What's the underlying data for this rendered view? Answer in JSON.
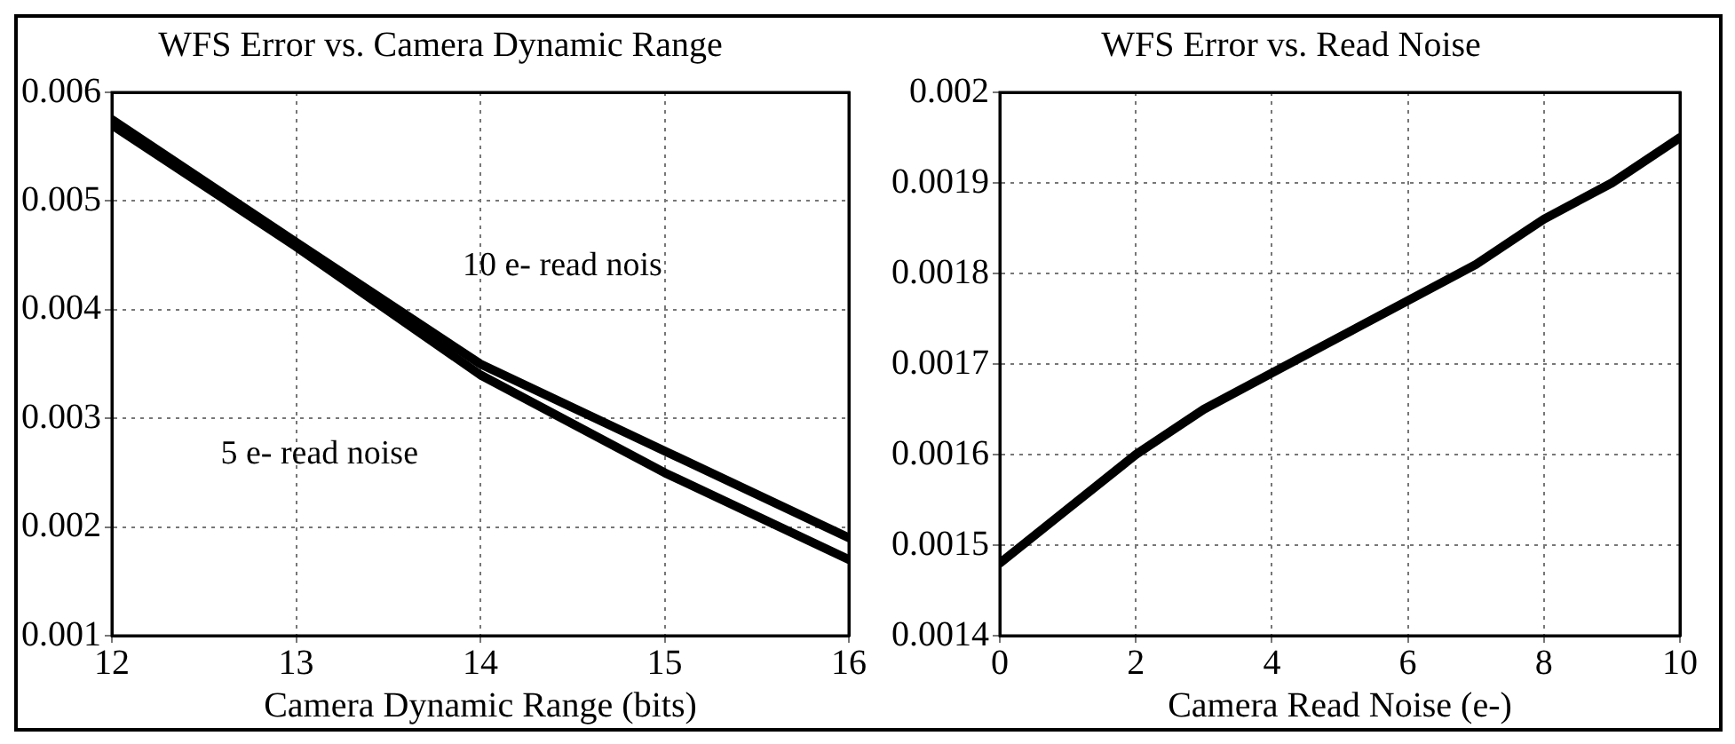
{
  "chart_data": [
    {
      "type": "line",
      "title": "WFS Error vs. Camera Dynamic Range",
      "xlabel": "Camera Dynamic Range (bits)",
      "x": [
        12,
        13,
        14,
        15,
        16
      ],
      "series": [
        {
          "name": "10 e- read nois",
          "color": "#000000",
          "values": [
            0.00575,
            0.00462,
            0.0035,
            0.0027,
            0.0019
          ]
        },
        {
          "name": "5 e- read noise",
          "color": "#000000",
          "values": [
            0.0057,
            0.00458,
            0.0034,
            0.0025,
            0.0017
          ]
        }
      ],
      "xlim": [
        12,
        16
      ],
      "xticks": [
        12,
        13,
        14,
        15,
        16
      ],
      "ylim": [
        0.001,
        0.006
      ],
      "yticks": [
        0.001,
        0.002,
        0.003,
        0.004,
        0.005,
        0.006
      ],
      "grid": true,
      "legend": false,
      "marker": "none",
      "line_style": "solid"
    },
    {
      "type": "line",
      "title": "WFS Error vs. Read Noise",
      "xlabel": "Camera Read Noise (e-)",
      "x": [
        0,
        1,
        2,
        3,
        4,
        5,
        6,
        7,
        8,
        9,
        10
      ],
      "series": [
        {
          "color": "#000000",
          "values": [
            0.00148,
            0.00154,
            0.0016,
            0.00165,
            0.00169,
            0.00173,
            0.00177,
            0.00181,
            0.00186,
            0.0019,
            0.00195
          ]
        }
      ],
      "xlim": [
        0,
        10
      ],
      "xticks": [
        0,
        2,
        4,
        6,
        8,
        10
      ],
      "ylim": [
        0.0014,
        0.002
      ],
      "yticks": [
        0.0014,
        0.0015,
        0.0016,
        0.0017,
        0.0018,
        0.0019,
        0.002
      ],
      "grid": true,
      "legend": false,
      "marker": "none",
      "line_style": "solid"
    }
  ]
}
